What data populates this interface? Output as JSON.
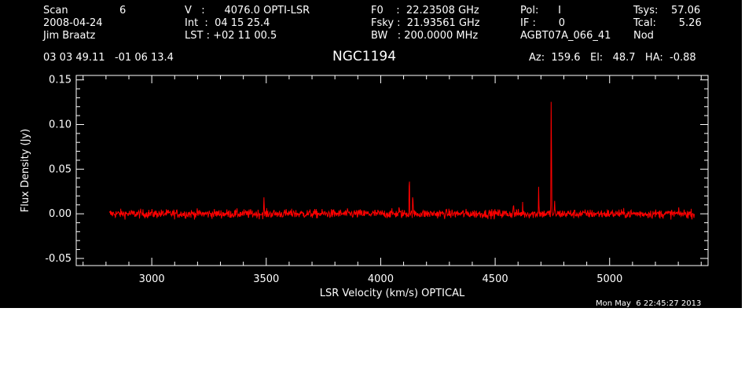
{
  "header": {
    "col1": [
      "Scan",
      "2008-04-24",
      "Jim Braatz"
    ],
    "scan_number": "6",
    "col2": [
      "V   :      4076.0 OPTI-LSR",
      "Int  :  04 15 25.4",
      "LST : +02 11 00.5"
    ],
    "col3": [
      "F0    :  22.23508 GHz",
      "Fsky :  21.93561 GHz",
      "BW   : 200.0000 MHz"
    ],
    "col4": [
      "Pol:      I",
      "IF :       0",
      "AGBT07A_066_41"
    ],
    "col5": [
      "Tsys:    57.06",
      "Tcal:       5.26",
      "Nod"
    ],
    "coords": "03 03 49.11   -01 06 13.4",
    "source": "NGC1194",
    "pointing": "Az:  159.6   El:   48.7   HA:  -0.88",
    "timestamp": "Mon May  6 22:45:27 2013"
  },
  "colors": {
    "background": "#000000",
    "axes": "#ffffff",
    "spectrum": "#ff0000"
  },
  "chart_data": {
    "type": "line",
    "title": "NGC1194",
    "xlabel": "LSR Velocity (km/s) OPTICAL",
    "ylabel": "Flux Density (Jy)",
    "xlim": [
      2670,
      5430
    ],
    "ylim": [
      -0.058,
      0.155
    ],
    "xticks": [
      3000,
      3500,
      4000,
      4500,
      5000
    ],
    "xtick_labels": [
      "3000",
      "3500",
      "4000",
      "4500",
      "5000"
    ],
    "yticks": [
      -0.05,
      0.0,
      0.05,
      0.1,
      0.15
    ],
    "ytick_labels": [
      "-0.05",
      "0.00",
      "0.05",
      "0.10",
      "0.15"
    ],
    "grid": false,
    "series": [
      {
        "noise_rms": 0.0025,
        "x_range": [
          2815,
          5370
        ],
        "channels": 1500,
        "peaks": [
          {
            "x": 3490,
            "y": 0.016
          },
          {
            "x": 3620,
            "y": 0.007
          },
          {
            "x": 4080,
            "y": 0.008
          },
          {
            "x": 4125,
            "y": 0.053
          },
          {
            "x": 4140,
            "y": 0.027
          },
          {
            "x": 4580,
            "y": 0.014
          },
          {
            "x": 4620,
            "y": 0.01
          },
          {
            "x": 4690,
            "y": 0.032
          },
          {
            "x": 4745,
            "y": 0.15
          },
          {
            "x": 4760,
            "y": 0.012
          }
        ]
      }
    ]
  }
}
